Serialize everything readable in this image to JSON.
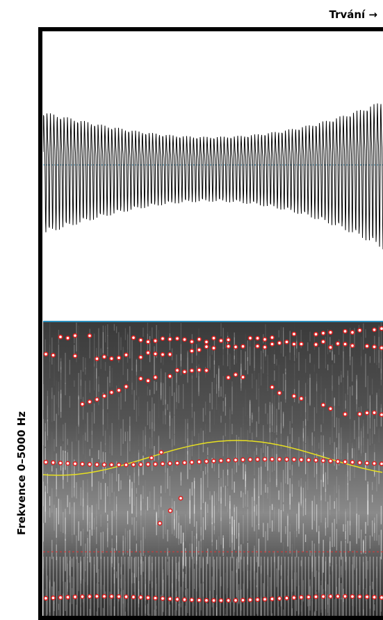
{
  "header": {
    "time_label": "Trvání →"
  },
  "axis": {
    "frequency_label": "Frekvence 0–5000 Hz"
  }
}
